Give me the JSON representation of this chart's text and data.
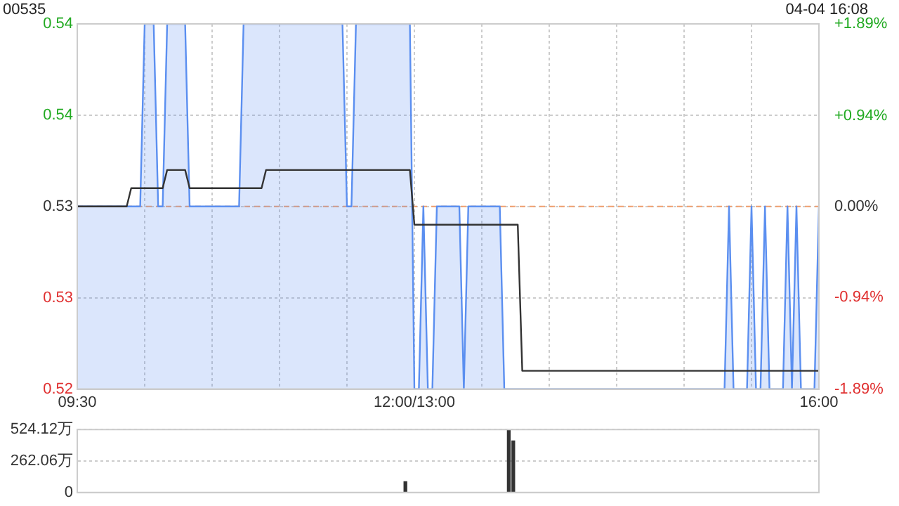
{
  "chart_data": [
    {
      "type": "line",
      "title": "00535",
      "annotations": [
        "04-04 16:08"
      ],
      "categories": [
        "09:30",
        null,
        null,
        null,
        null,
        null,
        null,
        null,
        null,
        null,
        null,
        null,
        null,
        null,
        null,
        null,
        null,
        null,
        null,
        null,
        null,
        null,
        null,
        null,
        null,
        null,
        null,
        null,
        null,
        null,
        null,
        null,
        null,
        null,
        null,
        null,
        null,
        null,
        null,
        null,
        null,
        null,
        null,
        null,
        null,
        null,
        null,
        null,
        null,
        null,
        null,
        null,
        null,
        null,
        null,
        null,
        null,
        null,
        null,
        null,
        null,
        null,
        null,
        null,
        null,
        null,
        null,
        null,
        null,
        null,
        null,
        null,
        null,
        null,
        null,
        "12:00/13:00",
        null,
        null,
        null,
        null,
        null,
        null,
        null,
        null,
        null,
        null,
        null,
        null,
        null,
        null,
        null,
        null,
        null,
        null,
        null,
        null,
        null,
        null,
        null,
        null,
        null,
        null,
        null,
        null,
        null,
        null,
        null,
        null,
        null,
        null,
        null,
        null,
        null,
        null,
        null,
        null,
        null,
        null,
        null,
        null,
        null,
        null,
        null,
        null,
        null,
        null,
        null,
        null,
        null,
        null,
        null,
        null,
        null,
        null,
        null,
        null,
        null,
        null,
        null,
        null,
        null,
        null,
        null,
        null,
        null,
        null,
        null,
        null,
        null,
        null,
        null,
        null,
        null,
        null,
        null,
        null,
        null,
        null,
        null,
        null,
        null,
        null,
        null,
        null,
        null,
        "16:00"
      ],
      "ylim": [
        0.52,
        0.54
      ],
      "yticks": [
        0.52,
        {
          "value": 0.525,
          "label": "0.53"
        },
        0.53,
        {
          "value": 0.535,
          "label": "0.54"
        },
        0.54
      ],
      "y2lim": [
        -1.89,
        1.89
      ],
      "y2ticks": [
        {
          "value": -1.89,
          "label": "-1.89%"
        },
        {
          "value": -0.94,
          "label": "-0.94%"
        },
        {
          "value": 0,
          "label": "0.00%"
        },
        {
          "value": 0.94,
          "label": "+0.94%"
        },
        {
          "value": 1.89,
          "label": "+1.89%"
        }
      ],
      "grid": true,
      "legend": false,
      "marker": "none",
      "ref_lines": [
        {
          "axis": "y",
          "value": 0.53,
          "color": "#f0a070",
          "line_style": "dashed"
        }
      ],
      "series": [
        {
          "type": "area",
          "color": "#5b8ff0",
          "values": [
            0.53,
            0.53,
            0.53,
            0.53,
            0.53,
            0.53,
            0.53,
            0.53,
            0.53,
            0.53,
            0.53,
            0.53,
            0.53,
            0.53,
            0.53,
            0.54,
            0.54,
            0.54,
            0.53,
            0.53,
            0.54,
            0.54,
            0.54,
            0.54,
            0.54,
            0.53,
            0.53,
            0.53,
            0.53,
            0.53,
            0.53,
            0.53,
            0.53,
            0.53,
            0.53,
            0.53,
            0.53,
            0.54,
            0.54,
            0.54,
            0.54,
            0.54,
            0.54,
            0.54,
            0.54,
            0.54,
            0.54,
            0.54,
            0.54,
            0.54,
            0.54,
            0.54,
            0.54,
            0.54,
            0.54,
            0.54,
            0.54,
            0.54,
            0.54,
            0.54,
            0.53,
            0.53,
            0.54,
            0.54,
            0.54,
            0.54,
            0.54,
            0.54,
            0.54,
            0.54,
            0.54,
            0.54,
            0.54,
            0.54,
            0.54,
            0.52,
            0.52,
            0.53,
            0.52,
            0.52,
            0.53,
            0.53,
            0.53,
            0.53,
            0.53,
            0.53,
            0.52,
            0.53,
            0.53,
            0.53,
            0.53,
            0.53,
            0.53,
            0.53,
            0.53,
            0.52,
            0.52,
            0.52,
            0.52,
            0.52,
            0.52,
            0.52,
            0.52,
            0.52,
            0.52,
            0.52,
            0.52,
            0.52,
            0.52,
            0.52,
            0.52,
            0.52,
            0.52,
            0.52,
            0.52,
            0.52,
            0.52,
            0.52,
            0.52,
            0.52,
            0.52,
            0.52,
            0.52,
            0.52,
            0.52,
            0.52,
            0.52,
            0.52,
            0.52,
            0.52,
            0.52,
            0.52,
            0.52,
            0.52,
            0.52,
            0.52,
            0.52,
            0.52,
            0.52,
            0.52,
            0.52,
            0.52,
            0.52,
            0.52,
            0.52,
            0.53,
            0.52,
            0.52,
            0.52,
            0.52,
            0.53,
            0.52,
            0.52,
            0.53,
            0.52,
            0.52,
            0.52,
            0.52,
            0.53,
            0.52,
            0.53,
            0.52,
            0.52,
            0.52,
            0.52,
            0.53
          ]
        },
        {
          "type": "line",
          "color": "#333333",
          "values": [
            0.53,
            0.53,
            0.53,
            0.53,
            0.53,
            0.53,
            0.53,
            0.53,
            0.53,
            0.53,
            0.53,
            0.53,
            0.531,
            0.531,
            0.531,
            0.531,
            0.531,
            0.531,
            0.531,
            0.531,
            0.532,
            0.532,
            0.532,
            0.532,
            0.532,
            0.531,
            0.531,
            0.531,
            0.531,
            0.531,
            0.531,
            0.531,
            0.531,
            0.531,
            0.531,
            0.531,
            0.531,
            0.531,
            0.531,
            0.531,
            0.531,
            0.531,
            0.532,
            0.532,
            0.532,
            0.532,
            0.532,
            0.532,
            0.532,
            0.532,
            0.532,
            0.532,
            0.532,
            0.532,
            0.532,
            0.532,
            0.532,
            0.532,
            0.532,
            0.532,
            0.532,
            0.532,
            0.532,
            0.532,
            0.532,
            0.532,
            0.532,
            0.532,
            0.532,
            0.532,
            0.532,
            0.532,
            0.532,
            0.532,
            0.532,
            0.529,
            0.529,
            0.529,
            0.529,
            0.529,
            0.529,
            0.529,
            0.529,
            0.529,
            0.529,
            0.529,
            0.529,
            0.529,
            0.529,
            0.529,
            0.529,
            0.529,
            0.529,
            0.529,
            0.529,
            0.529,
            0.529,
            0.529,
            0.529,
            0.521,
            0.521,
            0.521,
            0.521,
            0.521,
            0.521,
            0.521,
            0.521,
            0.521,
            0.521,
            0.521,
            0.521,
            0.521,
            0.521,
            0.521,
            0.521,
            0.521,
            0.521,
            0.521,
            0.521,
            0.521,
            0.521,
            0.521,
            0.521,
            0.521,
            0.521,
            0.521,
            0.521,
            0.521,
            0.521,
            0.521,
            0.521,
            0.521,
            0.521,
            0.521,
            0.521,
            0.521,
            0.521,
            0.521,
            0.521,
            0.521,
            0.521,
            0.521,
            0.521,
            0.521,
            0.521,
            0.521,
            0.521,
            0.521,
            0.521,
            0.521,
            0.521,
            0.521,
            0.521,
            0.521,
            0.521,
            0.521,
            0.521,
            0.521,
            0.521,
            0.521,
            0.521,
            0.521,
            0.521,
            0.521,
            0.521,
            0.521
          ]
        }
      ]
    },
    {
      "type": "bar",
      "categories": [
        null,
        null,
        null,
        null,
        null,
        null,
        null,
        null,
        null,
        null,
        null,
        null,
        null,
        null,
        null,
        null,
        null,
        null,
        null,
        null,
        null,
        null,
        null,
        null,
        null,
        null,
        null,
        null,
        null,
        null,
        null,
        null,
        null,
        null,
        null,
        null,
        null,
        null,
        null,
        null,
        null,
        null,
        null,
        null,
        null,
        null,
        null,
        null,
        null,
        null,
        null,
        null,
        null,
        null,
        null,
        null,
        null,
        null,
        null,
        null,
        null,
        null,
        null,
        null,
        null,
        null,
        null,
        null,
        null,
        null,
        null,
        null,
        null,
        null,
        null,
        null,
        null,
        null,
        null,
        null,
        null,
        null,
        null,
        null,
        null,
        null,
        null,
        null,
        null,
        null,
        null,
        null,
        null,
        null,
        null,
        null,
        null,
        null,
        null,
        null,
        null,
        null,
        null,
        null,
        null,
        null,
        null,
        null,
        null,
        null,
        null,
        null,
        null,
        null,
        null,
        null,
        null,
        null,
        null,
        null,
        null,
        null,
        null,
        null,
        null,
        null,
        null,
        null,
        null,
        null,
        null,
        null,
        null,
        null,
        null,
        null,
        null,
        null,
        null,
        null,
        null,
        null,
        null,
        null,
        null,
        null,
        null,
        null,
        null,
        null,
        null,
        null,
        null,
        null,
        null,
        null,
        null,
        null,
        null,
        null,
        null,
        null,
        null,
        null,
        null,
        null
      ],
      "ylim": [
        0,
        524.12
      ],
      "yticks": [
        0,
        {
          "value": 262.06,
          "label": "262.06万"
        },
        {
          "value": 524.12,
          "label": "524.12万"
        }
      ],
      "tick_labels": "y",
      "grid": "y",
      "legend": false,
      "series": [
        {
          "color": "#333333",
          "values": [
            0,
            0,
            0,
            0,
            0,
            0,
            0,
            0,
            0,
            0,
            0,
            0,
            0,
            0,
            0,
            0,
            0,
            0,
            0,
            0,
            0,
            0,
            0,
            0,
            0,
            0,
            0,
            0,
            0,
            0,
            0,
            0,
            0,
            0,
            0,
            0,
            0,
            0,
            0,
            0,
            0,
            0,
            0,
            0,
            0,
            0,
            0,
            0,
            0,
            0,
            0,
            0,
            0,
            0,
            0,
            0,
            0,
            0,
            0,
            0,
            0,
            0,
            0,
            0,
            0,
            0,
            0,
            0,
            0,
            0,
            0,
            0,
            0,
            90,
            0,
            0,
            0,
            0,
            0,
            0,
            0,
            0,
            0,
            0,
            0,
            0,
            0,
            0,
            0,
            0,
            0,
            0,
            0,
            0,
            0,
            0,
            520,
            430,
            0,
            0,
            0,
            0,
            0,
            0,
            0,
            0,
            0,
            0,
            0,
            0,
            0,
            0,
            0,
            0,
            0,
            0,
            0,
            0,
            0,
            0,
            0,
            0,
            0,
            0,
            0,
            0,
            0,
            0,
            0,
            0,
            0,
            0,
            0,
            0,
            0,
            0,
            0,
            0,
            0,
            0,
            0,
            0,
            0,
            0,
            0,
            0,
            0,
            0,
            0,
            0,
            0,
            0,
            0,
            0,
            0,
            0,
            0,
            0,
            0,
            0,
            0,
            0,
            0,
            0,
            0,
            0
          ]
        }
      ]
    }
  ]
}
